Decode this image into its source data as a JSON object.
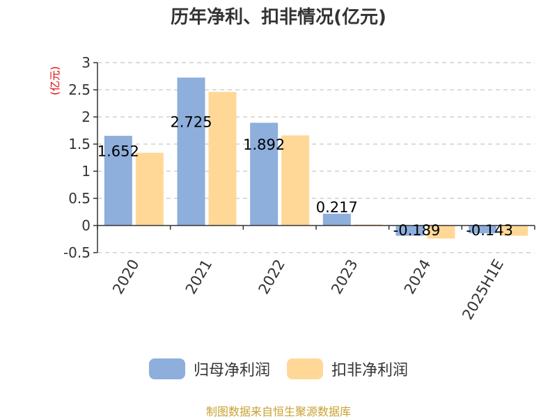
{
  "chart_data": {
    "type": "bar",
    "title": "历年净利、扣非情况(亿元)",
    "ylabel": "(亿元)",
    "xlabel": "",
    "categories": [
      "2020",
      "2021",
      "2022",
      "2023",
      "2024",
      "2025H1E"
    ],
    "series": [
      {
        "name": "归母净利润",
        "color": "#8eaedc",
        "values": [
          1.652,
          2.725,
          1.892,
          0.217,
          -0.189,
          -0.143
        ],
        "data_labels": [
          "1.652",
          "2.725",
          "1.892",
          "0.217",
          "-0.189",
          "-0.143"
        ]
      },
      {
        "name": "扣非净利润",
        "color": "#ffd898",
        "values": [
          1.34,
          2.46,
          1.66,
          0.02,
          -0.24,
          -0.19
        ]
      }
    ],
    "ylim": [
      -0.5,
      3
    ],
    "yticks": [
      "3",
      "2.5",
      "2",
      "1.5",
      "1",
      "0.5",
      "0",
      "-0.5"
    ],
    "ytick_values": [
      3,
      2.5,
      2,
      1.5,
      1,
      0.5,
      0,
      -0.5
    ],
    "grid": true,
    "legend_position": "bottom"
  },
  "source_note": "制图数据来自恒生聚源数据库"
}
